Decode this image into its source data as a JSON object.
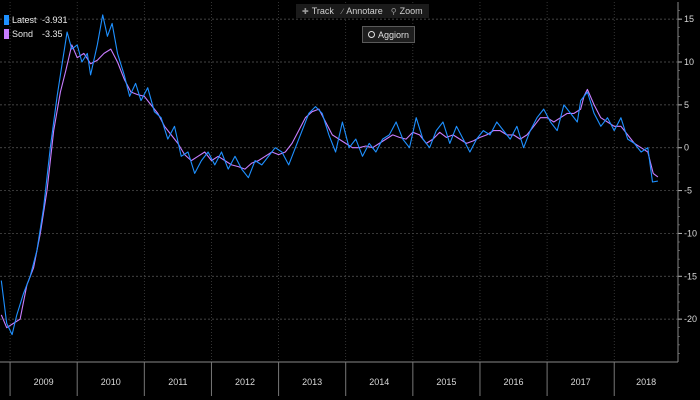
{
  "toolbar": {
    "track_label": "Track",
    "annotate_label": "Annotare",
    "zoom_label": "Zoom",
    "track_icon": "crosshair-icon",
    "annotate_icon": "pencil-icon",
    "zoom_icon": "magnifier-icon"
  },
  "update_button": {
    "label": "Aggiorn",
    "icon": "radio-icon"
  },
  "legend": [
    {
      "name": "Latest",
      "value": "-3.931",
      "color": "#1e90ff"
    },
    {
      "name": "Sond",
      "value": "-3.35",
      "color": "#c77dff"
    }
  ],
  "chart_data": {
    "type": "line",
    "title": "",
    "xlabel": "",
    "ylabel": "",
    "x_tick_labels": [
      "2009",
      "2010",
      "2011",
      "2012",
      "2013",
      "2014",
      "2015",
      "2016",
      "2017",
      "2018"
    ],
    "y_ticks": [
      15,
      10,
      5,
      0,
      -5,
      -10,
      -15,
      -20
    ],
    "ylim": [
      -25,
      17
    ],
    "xlim": [
      2008.85,
      2018.95
    ],
    "grid": true,
    "legend_position": "top-left",
    "series": [
      {
        "name": "Latest",
        "color": "#1e90ff",
        "values": [
          [
            2008.87,
            -15.5
          ],
          [
            2008.95,
            -20.5
          ],
          [
            2009.03,
            -21.8
          ],
          [
            2009.1,
            -19.5
          ],
          [
            2009.2,
            -17
          ],
          [
            2009.3,
            -15
          ],
          [
            2009.4,
            -12
          ],
          [
            2009.5,
            -7
          ],
          [
            2009.6,
            0
          ],
          [
            2009.7,
            6
          ],
          [
            2009.78,
            10
          ],
          [
            2009.85,
            13.5
          ],
          [
            2009.92,
            11.5
          ],
          [
            2010.0,
            12
          ],
          [
            2010.07,
            10
          ],
          [
            2010.15,
            11
          ],
          [
            2010.2,
            8.5
          ],
          [
            2010.3,
            12
          ],
          [
            2010.38,
            15.5
          ],
          [
            2010.45,
            13
          ],
          [
            2010.52,
            14.5
          ],
          [
            2010.6,
            11
          ],
          [
            2010.7,
            8.5
          ],
          [
            2010.78,
            6
          ],
          [
            2010.87,
            7.5
          ],
          [
            2010.95,
            5.5
          ],
          [
            2011.05,
            7
          ],
          [
            2011.15,
            4.2
          ],
          [
            2011.25,
            3.5
          ],
          [
            2011.35,
            1
          ],
          [
            2011.45,
            2.5
          ],
          [
            2011.55,
            -1
          ],
          [
            2011.65,
            -0.5
          ],
          [
            2011.75,
            -3
          ],
          [
            2011.85,
            -1.5
          ],
          [
            2011.95,
            -0.5
          ],
          [
            2012.05,
            -2
          ],
          [
            2012.15,
            -0.5
          ],
          [
            2012.25,
            -2.5
          ],
          [
            2012.35,
            -1
          ],
          [
            2012.45,
            -2.5
          ],
          [
            2012.55,
            -3.5
          ],
          [
            2012.65,
            -1.5
          ],
          [
            2012.75,
            -2
          ],
          [
            2012.85,
            -1
          ],
          [
            2012.95,
            0
          ],
          [
            2013.05,
            -0.5
          ],
          [
            2013.15,
            -2
          ],
          [
            2013.25,
            0
          ],
          [
            2013.35,
            2
          ],
          [
            2013.45,
            4
          ],
          [
            2013.55,
            4.8
          ],
          [
            2013.65,
            4
          ],
          [
            2013.75,
            1.5
          ],
          [
            2013.85,
            -0.5
          ],
          [
            2013.95,
            3
          ],
          [
            2014.05,
            0
          ],
          [
            2014.15,
            1
          ],
          [
            2014.25,
            -1
          ],
          [
            2014.35,
            0.5
          ],
          [
            2014.45,
            -0.5
          ],
          [
            2014.55,
            1
          ],
          [
            2014.65,
            1.5
          ],
          [
            2014.75,
            3
          ],
          [
            2014.85,
            1
          ],
          [
            2014.95,
            0
          ],
          [
            2015.05,
            3.5
          ],
          [
            2015.15,
            1
          ],
          [
            2015.25,
            0
          ],
          [
            2015.35,
            2
          ],
          [
            2015.45,
            3
          ],
          [
            2015.55,
            0.5
          ],
          [
            2015.65,
            2.5
          ],
          [
            2015.75,
            1
          ],
          [
            2015.85,
            -0.5
          ],
          [
            2015.95,
            1
          ],
          [
            2016.05,
            2
          ],
          [
            2016.15,
            1.5
          ],
          [
            2016.25,
            3
          ],
          [
            2016.35,
            2
          ],
          [
            2016.45,
            1
          ],
          [
            2016.55,
            2.5
          ],
          [
            2016.65,
            0
          ],
          [
            2016.75,
            2
          ],
          [
            2016.85,
            3.5
          ],
          [
            2016.95,
            4.5
          ],
          [
            2017.05,
            3
          ],
          [
            2017.15,
            2
          ],
          [
            2017.25,
            5
          ],
          [
            2017.35,
            4
          ],
          [
            2017.45,
            3
          ],
          [
            2017.5,
            5.5
          ],
          [
            2017.6,
            6.5
          ],
          [
            2017.7,
            4
          ],
          [
            2017.8,
            2.5
          ],
          [
            2017.9,
            3.5
          ],
          [
            2018.0,
            2
          ],
          [
            2018.1,
            3.5
          ],
          [
            2018.2,
            1
          ],
          [
            2018.3,
            0.5
          ],
          [
            2018.4,
            -0.5
          ],
          [
            2018.5,
            0
          ],
          [
            2018.57,
            -4
          ],
          [
            2018.65,
            -3.9
          ]
        ]
      },
      {
        "name": "Sond",
        "color": "#c77dff",
        "values": [
          [
            2008.87,
            -19.5
          ],
          [
            2008.95,
            -21
          ],
          [
            2009.05,
            -20.5
          ],
          [
            2009.15,
            -20
          ],
          [
            2009.25,
            -16
          ],
          [
            2009.35,
            -14
          ],
          [
            2009.45,
            -10
          ],
          [
            2009.55,
            -5
          ],
          [
            2009.65,
            2
          ],
          [
            2009.75,
            6.5
          ],
          [
            2009.83,
            9
          ],
          [
            2009.92,
            12
          ],
          [
            2010.0,
            10.5
          ],
          [
            2010.1,
            11
          ],
          [
            2010.2,
            9.8
          ],
          [
            2010.3,
            10.2
          ],
          [
            2010.4,
            11
          ],
          [
            2010.5,
            11.5
          ],
          [
            2010.6,
            10
          ],
          [
            2010.7,
            8
          ],
          [
            2010.8,
            6.5
          ],
          [
            2010.9,
            6.2
          ],
          [
            2011.0,
            6
          ],
          [
            2011.1,
            5
          ],
          [
            2011.2,
            4
          ],
          [
            2011.3,
            2.5
          ],
          [
            2011.4,
            1.5
          ],
          [
            2011.5,
            0.5
          ],
          [
            2011.6,
            -0.8
          ],
          [
            2011.7,
            -1.5
          ],
          [
            2011.8,
            -1
          ],
          [
            2011.9,
            -0.5
          ],
          [
            2012.0,
            -1.5
          ],
          [
            2012.1,
            -1
          ],
          [
            2012.2,
            -1.5
          ],
          [
            2012.3,
            -2
          ],
          [
            2012.4,
            -2.2
          ],
          [
            2012.5,
            -2.5
          ],
          [
            2012.6,
            -1.8
          ],
          [
            2012.7,
            -1.5
          ],
          [
            2012.8,
            -1
          ],
          [
            2012.9,
            -0.5
          ],
          [
            2013.0,
            -0.8
          ],
          [
            2013.1,
            -0.5
          ],
          [
            2013.2,
            0.5
          ],
          [
            2013.3,
            2
          ],
          [
            2013.4,
            3.5
          ],
          [
            2013.5,
            4.2
          ],
          [
            2013.6,
            4.5
          ],
          [
            2013.7,
            3
          ],
          [
            2013.8,
            1.5
          ],
          [
            2013.9,
            1
          ],
          [
            2014.0,
            0.5
          ],
          [
            2014.1,
            0
          ],
          [
            2014.2,
            0
          ],
          [
            2014.3,
            0.2
          ],
          [
            2014.4,
            0
          ],
          [
            2014.5,
            0.5
          ],
          [
            2014.6,
            1
          ],
          [
            2014.7,
            1.5
          ],
          [
            2014.8,
            1.2
          ],
          [
            2014.9,
            1
          ],
          [
            2015.0,
            1.8
          ],
          [
            2015.1,
            1.5
          ],
          [
            2015.2,
            0.5
          ],
          [
            2015.3,
            1
          ],
          [
            2015.4,
            1.8
          ],
          [
            2015.5,
            1.2
          ],
          [
            2015.6,
            1.5
          ],
          [
            2015.7,
            1
          ],
          [
            2015.8,
            0.5
          ],
          [
            2015.9,
            0.8
          ],
          [
            2016.0,
            1.2
          ],
          [
            2016.1,
            1.5
          ],
          [
            2016.2,
            2
          ],
          [
            2016.3,
            2
          ],
          [
            2016.4,
            1.5
          ],
          [
            2016.5,
            1.5
          ],
          [
            2016.6,
            1
          ],
          [
            2016.7,
            1.5
          ],
          [
            2016.8,
            2.5
          ],
          [
            2016.9,
            3.5
          ],
          [
            2017.0,
            3.5
          ],
          [
            2017.1,
            3
          ],
          [
            2017.2,
            3.5
          ],
          [
            2017.3,
            4
          ],
          [
            2017.4,
            4
          ],
          [
            2017.5,
            4.5
          ],
          [
            2017.55,
            6
          ],
          [
            2017.6,
            6.8
          ],
          [
            2017.7,
            5
          ],
          [
            2017.8,
            3.5
          ],
          [
            2017.9,
            3
          ],
          [
            2018.0,
            2.5
          ],
          [
            2018.1,
            2.5
          ],
          [
            2018.2,
            1.5
          ],
          [
            2018.3,
            0.5
          ],
          [
            2018.4,
            0
          ],
          [
            2018.5,
            -0.5
          ],
          [
            2018.58,
            -3
          ],
          [
            2018.65,
            -3.4
          ]
        ]
      }
    ]
  }
}
